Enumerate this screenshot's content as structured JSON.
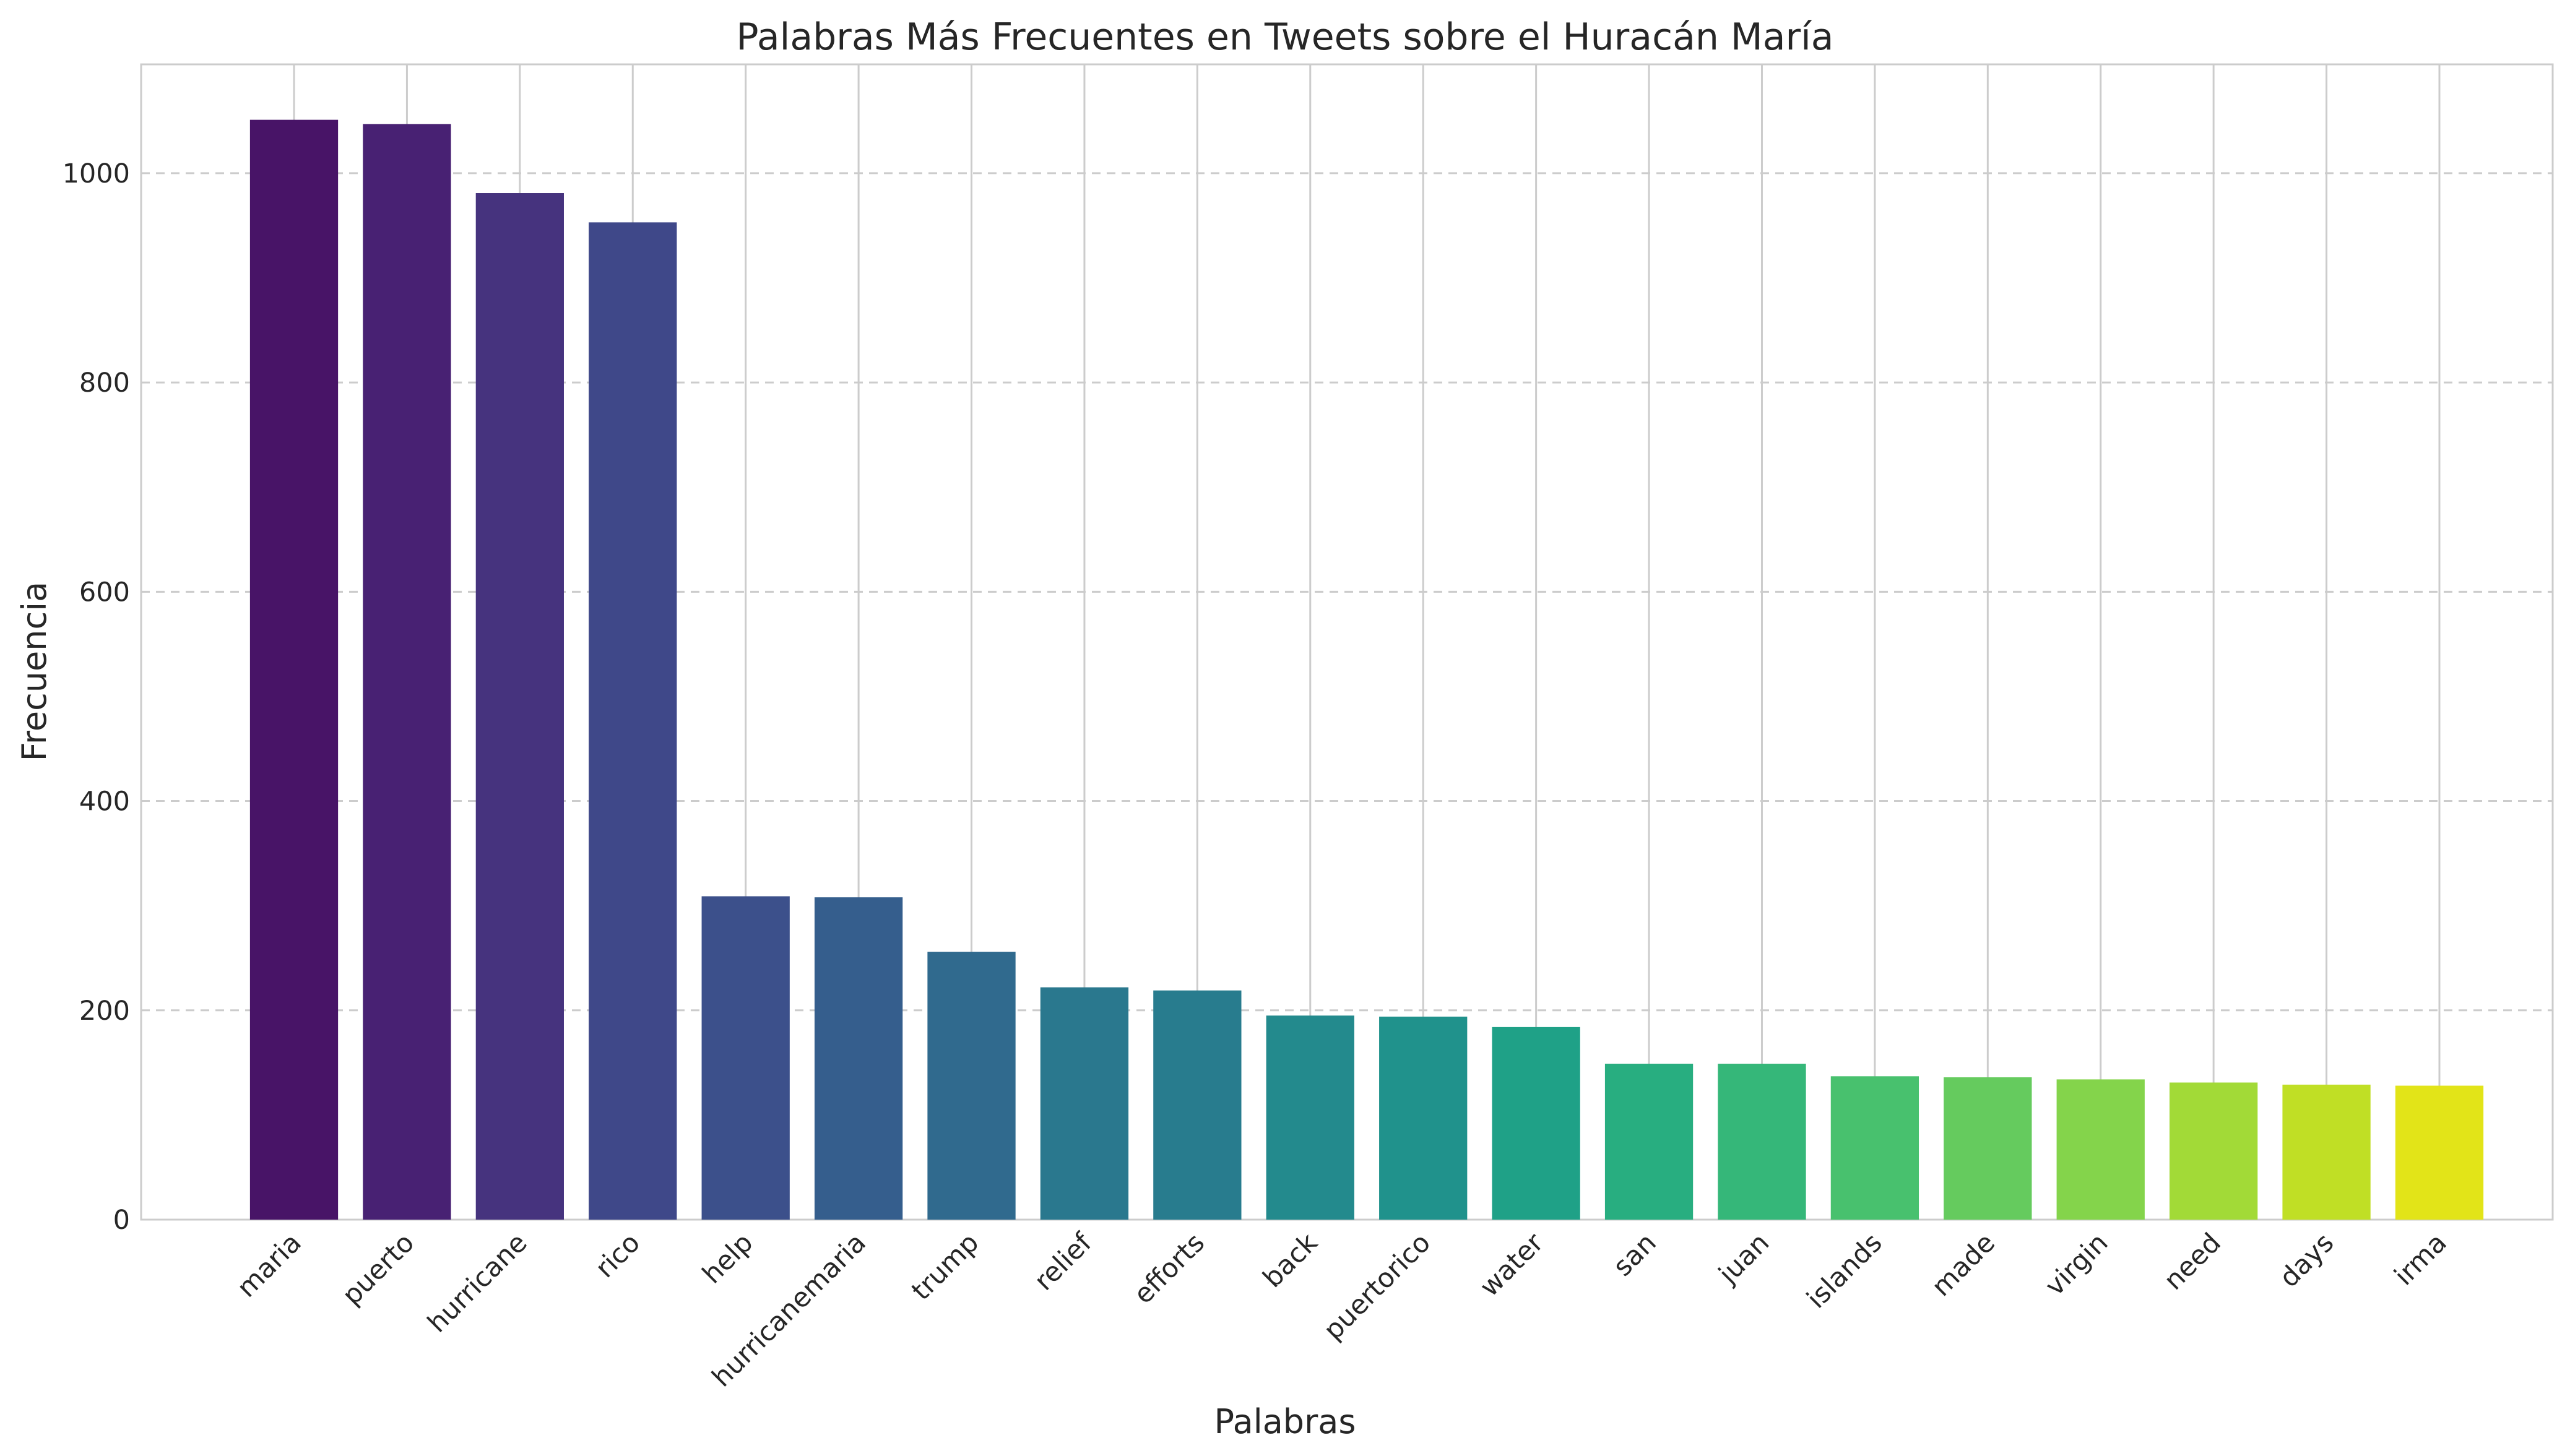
{
  "chart_data": {
    "type": "bar",
    "title": "Palabras Más Frecuentes en Tweets sobre el Huracán María",
    "xlabel": "Palabras",
    "ylabel": "Frecuencia",
    "categories": [
      "maria",
      "puerto",
      "hurricane",
      "rico",
      "help",
      "hurricanemaria",
      "trump",
      "relief",
      "efforts",
      "back",
      "puertorico",
      "water",
      "san",
      "juan",
      "islands",
      "made",
      "virgin",
      "need",
      "days",
      "irma"
    ],
    "values": [
      1051,
      1047,
      981,
      953,
      309,
      308,
      256,
      222,
      219,
      195,
      194,
      184,
      149,
      149,
      137,
      136,
      134,
      131,
      129,
      128
    ],
    "ylim": [
      0,
      1104
    ],
    "yticks": [
      0,
      200,
      400,
      600,
      800,
      1000
    ],
    "grid": true,
    "legend": "none",
    "colors": [
      "#481467",
      "#482173",
      "#46337e",
      "#3f4889",
      "#3c508b",
      "#355e8d",
      "#306a8e",
      "#2a788e",
      "#287c8e",
      "#238a8d",
      "#20928c",
      "#1fa187",
      "#28ae80",
      "#35b779",
      "#48c16e",
      "#65cb5e",
      "#84d44b",
      "#a2da37",
      "#c0df25",
      "#e2e418"
    ]
  }
}
